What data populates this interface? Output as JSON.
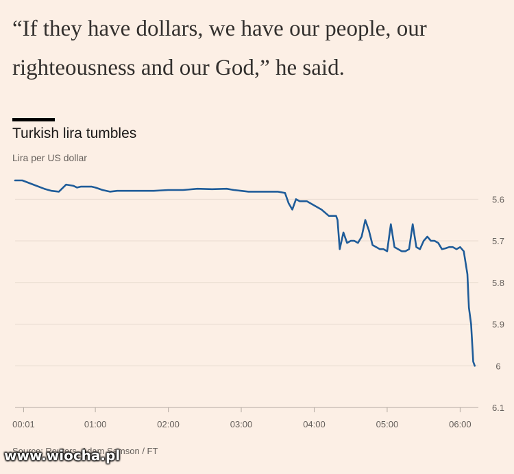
{
  "article": {
    "quote": "“If they have dollars, we have our people, our righteousness and our God,” he said."
  },
  "source": "Source: Reuters, Adam Samson / FT",
  "watermark": "www.wiocha.pl",
  "colors": {
    "background": "#fcefe5",
    "line": "#1f5c99",
    "grid": "#e6d9ce",
    "text": "#66605c"
  },
  "chart_data": {
    "type": "line",
    "title": "Turkish lira tumbles",
    "subtitle": "Lira per US dollar",
    "xlabel": "",
    "ylabel": "",
    "y_inverted": true,
    "ylim": [
      6.1,
      5.55
    ],
    "yticks": [
      5.6,
      5.7,
      5.8,
      5.9,
      6.0,
      6.1
    ],
    "ytick_labels": [
      "5.6",
      "5.7",
      "5.8",
      "5.9",
      "6",
      "6.1"
    ],
    "xlim": [
      -0.1,
      6.25
    ],
    "xticks": [
      0.0167,
      1,
      2,
      3,
      4,
      5,
      6
    ],
    "xtick_labels": [
      "00:01",
      "01:00",
      "02:00",
      "03:00",
      "04:00",
      "05:00",
      "06:00"
    ],
    "grid": true,
    "series": [
      {
        "x": [
          -0.1,
          0.0,
          0.15,
          0.3,
          0.4,
          0.5,
          0.6,
          0.7,
          0.75,
          0.8,
          0.85,
          0.95,
          1.0,
          1.1,
          1.2,
          1.3,
          1.4,
          1.5,
          1.6,
          1.8,
          2.0,
          2.2,
          2.4,
          2.6,
          2.8,
          2.9,
          3.0,
          3.1,
          3.3,
          3.5,
          3.6,
          3.65,
          3.7,
          3.75,
          3.8,
          3.9,
          4.0,
          4.1,
          4.2,
          4.3,
          4.32,
          4.35,
          4.4,
          4.45,
          4.5,
          4.55,
          4.6,
          4.65,
          4.7,
          4.75,
          4.8,
          4.85,
          4.9,
          4.95,
          5.0,
          5.05,
          5.1,
          5.15,
          5.2,
          5.25,
          5.3,
          5.35,
          5.4,
          5.45,
          5.5,
          5.55,
          5.6,
          5.65,
          5.7,
          5.75,
          5.8,
          5.85,
          5.9,
          5.95,
          6.0,
          6.05,
          6.1,
          6.12,
          6.15,
          6.18,
          6.2
        ],
        "values": [
          5.555,
          5.555,
          5.565,
          5.575,
          5.58,
          5.582,
          5.565,
          5.568,
          5.572,
          5.57,
          5.57,
          5.57,
          5.572,
          5.578,
          5.582,
          5.58,
          5.58,
          5.58,
          5.58,
          5.58,
          5.578,
          5.578,
          5.575,
          5.576,
          5.575,
          5.578,
          5.58,
          5.582,
          5.582,
          5.582,
          5.585,
          5.61,
          5.625,
          5.6,
          5.605,
          5.605,
          5.615,
          5.625,
          5.64,
          5.64,
          5.65,
          5.72,
          5.68,
          5.705,
          5.7,
          5.7,
          5.705,
          5.69,
          5.65,
          5.675,
          5.71,
          5.715,
          5.72,
          5.72,
          5.725,
          5.66,
          5.715,
          5.72,
          5.725,
          5.725,
          5.72,
          5.66,
          5.715,
          5.72,
          5.7,
          5.69,
          5.7,
          5.7,
          5.705,
          5.72,
          5.718,
          5.715,
          5.715,
          5.72,
          5.715,
          5.725,
          5.78,
          5.86,
          5.9,
          5.99,
          6.0
        ]
      }
    ]
  }
}
